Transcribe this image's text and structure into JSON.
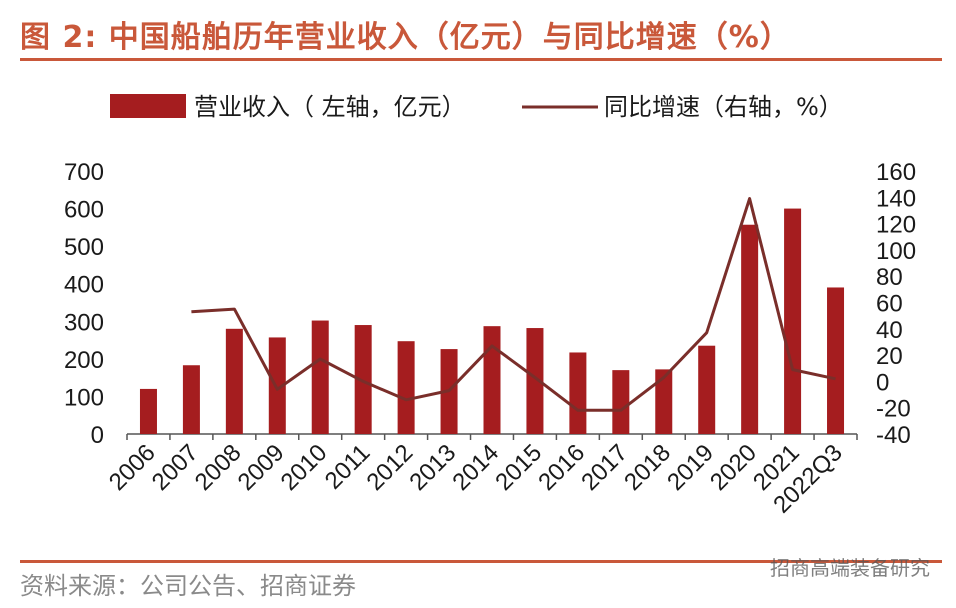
{
  "header": {
    "title": "图 2:  中国船舶历年营业收入（亿元）与同比增速（%）"
  },
  "footer": {
    "source": "资料来源：公司公告、招商证券",
    "watermark": "招商高端装备研究"
  },
  "colors": {
    "accent": "#c9583a",
    "bar": "#a51d1f",
    "line": "#7a2e2a"
  },
  "chart_data": {
    "type": "bar",
    "categories": [
      "2006",
      "2007",
      "2008",
      "2009",
      "2010",
      "2011",
      "2012",
      "2013",
      "2014",
      "2015",
      "2016",
      "2017",
      "2018",
      "2019",
      "2020",
      "2021",
      "2022Q3"
    ],
    "series": [
      {
        "name": "营业收入（ 左轴，亿元）",
        "type": "bar",
        "axis": "left",
        "values": [
          120,
          183,
          280,
          257,
          302,
          290,
          247,
          226,
          287,
          282,
          217,
          170,
          172,
          235,
          557,
          600,
          390
        ]
      },
      {
        "name": "同比增速（右轴，%）",
        "type": "line",
        "axis": "right",
        "values": [
          null,
          53,
          55,
          -6,
          17,
          0,
          -14,
          -7,
          27,
          3,
          -22,
          -22,
          3,
          37,
          139,
          9,
          2
        ]
      }
    ],
    "left_axis": {
      "ticks": [
        "700",
        "600",
        "500",
        "400",
        "300",
        "200",
        "100",
        "0"
      ],
      "ylim": [
        0,
        700
      ]
    },
    "right_axis": {
      "ticks": [
        "160",
        "140",
        "120",
        "100",
        "80",
        "60",
        "40",
        "20",
        "0",
        "-20",
        "-40"
      ],
      "ylim": [
        -40,
        160
      ]
    },
    "legend_position": "top"
  }
}
